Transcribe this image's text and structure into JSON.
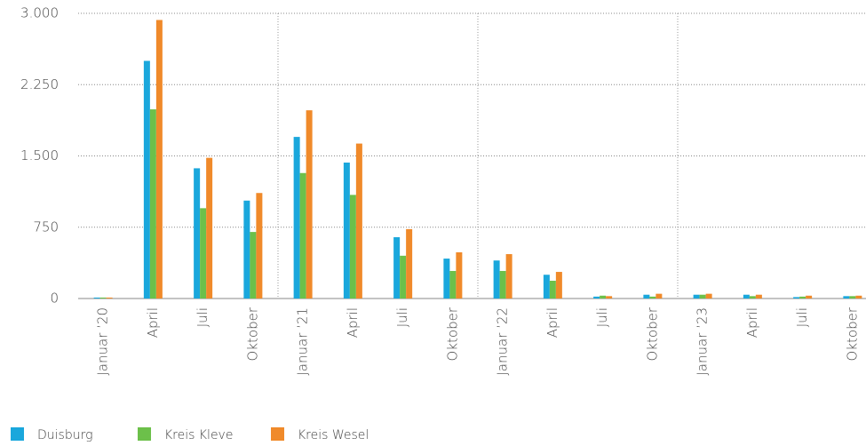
{
  "chart_data": {
    "type": "bar",
    "categories": [
      "Januar ’20",
      "April",
      "Juli",
      "Oktober",
      "Januar ’21",
      "April",
      "Juli",
      "Oktober",
      "Januar ’22",
      "April",
      "Juli",
      "Oktober",
      "Januar ’23",
      "April",
      "Juli",
      "Oktober"
    ],
    "series": [
      {
        "name": "Duisburg",
        "color": "#1aa7dc",
        "values": [
          10,
          2500,
          1370,
          1030,
          1700,
          1430,
          645,
          420,
          400,
          250,
          20,
          40,
          40,
          40,
          15,
          25
        ]
      },
      {
        "name": "Kreis Kleve",
        "color": "#6cc04a",
        "values": [
          10,
          1990,
          950,
          700,
          1320,
          1090,
          450,
          290,
          290,
          187,
          30,
          20,
          40,
          25,
          20,
          25
        ]
      },
      {
        "name": "Kreis Wesel",
        "color": "#f08a2a",
        "values": [
          10,
          2930,
          1480,
          1110,
          1980,
          1630,
          730,
          486,
          467,
          280,
          25,
          50,
          50,
          40,
          30,
          30
        ]
      }
    ],
    "ylim": [
      0,
      3000
    ],
    "yticks": [
      0,
      750,
      {
        "value": 1500,
        "label": "1.500"
      },
      {
        "value": 2250,
        "label": "2.250"
      },
      {
        "value": 3000,
        "label": "3.000"
      }
    ],
    "grid": true
  }
}
